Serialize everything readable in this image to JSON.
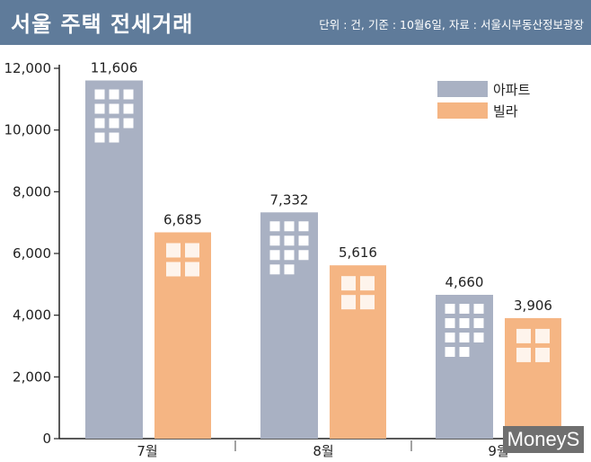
{
  "header": {
    "title": "서울 주택 전세거래",
    "source": "단위 : 건, 기준 : 10월6일, 자료 : 서울시부동산정보광장"
  },
  "chart_data": {
    "type": "bar",
    "title": "서울 주택 전세거래",
    "xlabel": "",
    "ylabel": "",
    "categories": [
      "7월",
      "8월",
      "9월"
    ],
    "series": [
      {
        "name": "아파트",
        "values": [
          11606,
          7332,
          4660
        ],
        "labels": [
          "11,606",
          "7,332",
          "4,660"
        ],
        "color": "#a9b1c3"
      },
      {
        "name": "빌라",
        "values": [
          6685,
          5616,
          3906
        ],
        "labels": [
          "6,685",
          "5,616",
          "3,906"
        ],
        "color": "#f5b583"
      }
    ],
    "ylim": [
      0,
      12000
    ],
    "yticks": [
      0,
      2000,
      4000,
      6000,
      8000,
      10000,
      12000
    ],
    "ytick_labels": [
      "0",
      "2,000",
      "4,000",
      "6,000",
      "8,000",
      "10,000",
      "12,000"
    ],
    "grid": false,
    "legend": "top-right"
  },
  "logo": {
    "text": "MoneyS"
  },
  "colors": {
    "header": "#5f7b9a",
    "apartment": "#a9b1c3",
    "villa": "#f5b583",
    "window": "#ffffff"
  }
}
